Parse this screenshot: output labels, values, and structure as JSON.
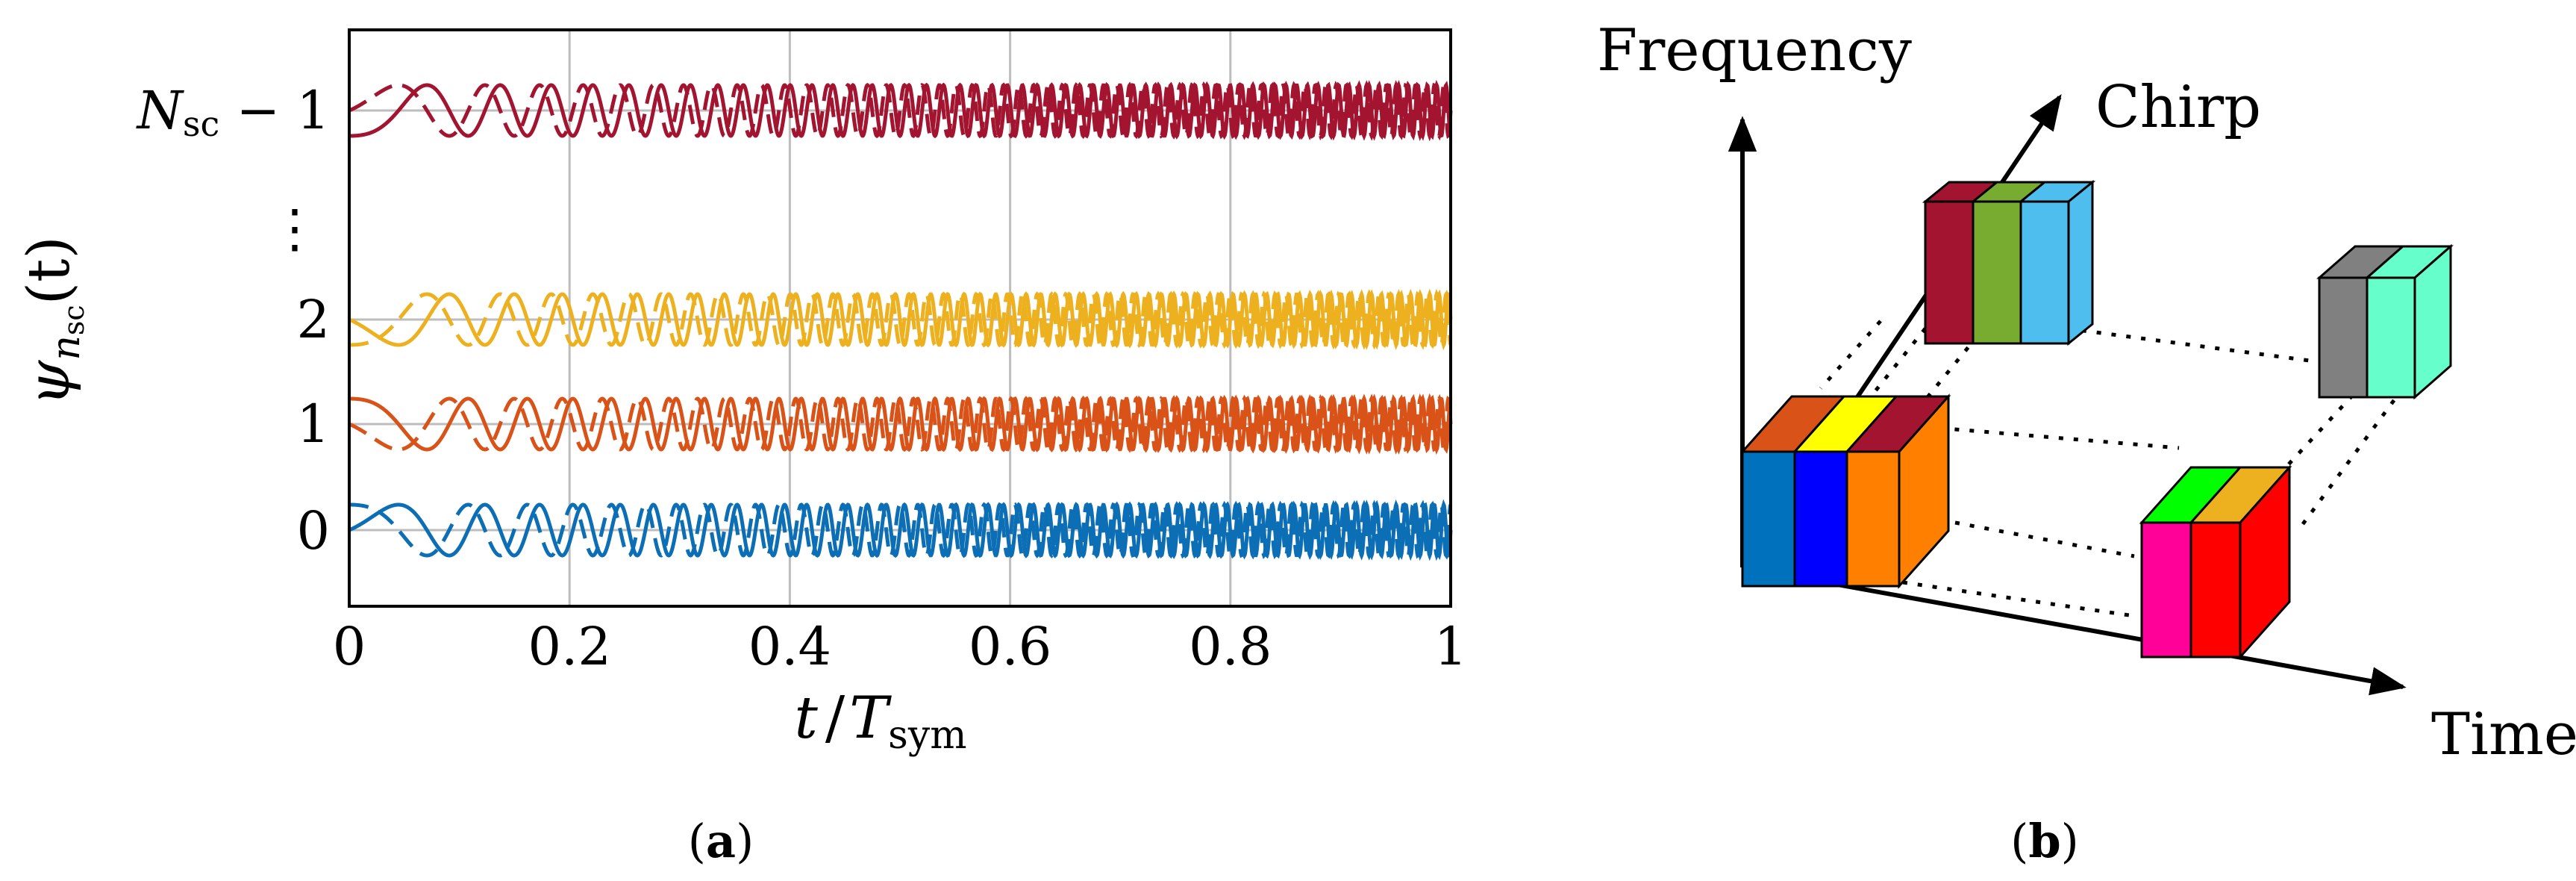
{
  "panel_a": {
    "caption_open": "(",
    "caption_letter": "a",
    "caption_close": ")",
    "ylabel_symbol": "ψ",
    "ylabel_sub": "n",
    "ylabel_subsub": "sc",
    "ylabel_arg": "(t)",
    "xlabel_t": "t",
    "xlabel_slash": "/",
    "xlabel_T": "T",
    "xlabel_sub": "sym",
    "ytick_N": "N",
    "ytick_N_sub": "sc",
    "ytick_N_suffix": " − 1",
    "ytick_dots": "⋮"
  },
  "chart_data": {
    "type": "line",
    "xlabel": "t / T_sym",
    "ylabel": "ψ_{n_sc}(t)",
    "xlim": [
      0,
      1
    ],
    "x_ticks": [
      "0",
      "0.2",
      "0.4",
      "0.6",
      "0.8",
      "1"
    ],
    "y_ticks": [
      "0",
      "1",
      "2",
      "⋮",
      "N_sc − 1"
    ],
    "grid": true,
    "series": [
      {
        "subcarrier": "0",
        "color": "#0c6fb5",
        "styles": [
          "solid",
          "dashed"
        ],
        "chirp_phase": 0
      },
      {
        "subcarrier": "1",
        "color": "#d95319",
        "styles": [
          "solid",
          "dashed"
        ],
        "chirp_phase": 1.57
      },
      {
        "subcarrier": "2",
        "color": "#edb120",
        "styles": [
          "solid",
          "dashed"
        ],
        "chirp_phase": 3.14
      },
      {
        "subcarrier": "N_sc − 1",
        "color": "#a2142f",
        "styles": [
          "solid",
          "dashed"
        ],
        "chirp_phase": 4.71
      }
    ]
  },
  "panel_b": {
    "caption_open": "(",
    "caption_letter": "b",
    "caption_close": ")",
    "axis_frequency": "Frequency",
    "axis_chirp": "Chirp",
    "axis_time": "Time",
    "block_colors": {
      "top_row": [
        "#a2142f",
        "#77ac30",
        "#4dbeee"
      ],
      "top_right": [
        "#808080",
        "#66ffcc"
      ],
      "front_left": [
        "#0072bd",
        "#0000ff",
        "#ff8000",
        "#a2142f"
      ],
      "front_left_top": [
        "#d95319",
        "#ffff00"
      ],
      "front_right": [
        "#ff0099",
        "#ff0000",
        "#edb120"
      ],
      "front_right_top": [
        "#00ff00"
      ]
    }
  }
}
